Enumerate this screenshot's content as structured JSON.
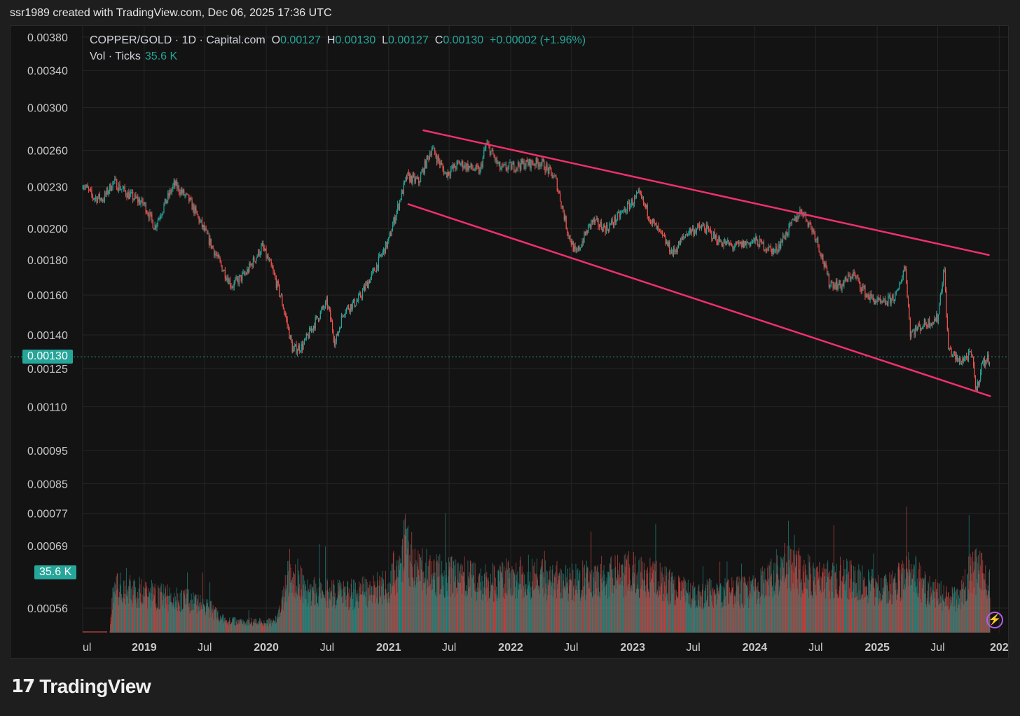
{
  "header": {
    "text": "ssr1989 created with TradingView.com, Dec 06, 2025 17:36 UTC"
  },
  "legend": {
    "symbol": "COPPER/GOLD · 1D · Capital.com",
    "o_label": "O",
    "o_value": "0.00127",
    "h_label": "H",
    "h_value": "0.00130",
    "l_label": "L",
    "l_value": "0.00127",
    "c_label": "C",
    "c_value": "0.00130",
    "change": "+0.00002 (+1.96%)",
    "volume_label": "Vol · Ticks",
    "volume_value": "35.6 K"
  },
  "price_tag": "0.00130",
  "volume_tag": "35.6 K",
  "footer": {
    "brand": "TradingView",
    "logo_icon": "tradingview-logo-icon"
  },
  "colors": {
    "up": "#26a69a",
    "down": "#ef5350",
    "trendline": "#f0306c",
    "background": "#131313",
    "grid": "#262626",
    "price_line": "#26a69a"
  },
  "chart_data": {
    "type": "candlestick",
    "title": "COPPER/GOLD · 1D · Capital.com",
    "y_scale": "log",
    "y_ticks": [
      "0.00380",
      "0.00340",
      "0.00300",
      "0.00260",
      "0.00230",
      "0.00200",
      "0.00180",
      "0.00160",
      "0.00140",
      "0.00125",
      "0.00110",
      "0.00095",
      "0.00085",
      "0.00077",
      "0.00069",
      "0.00056"
    ],
    "x_ticks": [
      "ul",
      "2019",
      "Jul",
      "2020",
      "Jul",
      "2021",
      "Jul",
      "2022",
      "Jul",
      "2023",
      "Jul",
      "2024",
      "Jul",
      "2025",
      "Jul",
      "202"
    ],
    "x_range": [
      "2018-07",
      "2025-12"
    ],
    "ylim": [
      0.0005,
      0.0039
    ],
    "last_price": 0.0013,
    "price_path": [
      [
        "2018-07-01",
        0.00233
      ],
      [
        "2018-08-01",
        0.00222
      ],
      [
        "2018-09-01",
        0.00221
      ],
      [
        "2018-10-01",
        0.00234
      ],
      [
        "2018-11-15",
        0.00224
      ],
      [
        "2019-01-01",
        0.00217
      ],
      [
        "2019-02-01",
        0.00201
      ],
      [
        "2019-04-01",
        0.00232
      ],
      [
        "2019-05-15",
        0.0022
      ],
      [
        "2019-07-01",
        0.00198
      ],
      [
        "2019-08-15",
        0.00178
      ],
      [
        "2019-09-20",
        0.00165
      ],
      [
        "2019-11-01",
        0.00172
      ],
      [
        "2019-12-20",
        0.00188
      ],
      [
        "2020-01-15",
        0.00176
      ],
      [
        "2020-02-15",
        0.00158
      ],
      [
        "2020-03-20",
        0.00133
      ],
      [
        "2020-04-20",
        0.00135
      ],
      [
        "2020-06-01",
        0.00148
      ],
      [
        "2020-07-01",
        0.00156
      ],
      [
        "2020-07-25",
        0.00136
      ],
      [
        "2020-08-20",
        0.00152
      ],
      [
        "2020-10-01",
        0.00157
      ],
      [
        "2020-11-15",
        0.00172
      ],
      [
        "2021-01-01",
        0.00192
      ],
      [
        "2021-02-01",
        0.00218
      ],
      [
        "2021-02-25",
        0.00238
      ],
      [
        "2021-04-01",
        0.00234
      ],
      [
        "2021-05-10",
        0.00262
      ],
      [
        "2021-06-20",
        0.0024
      ],
      [
        "2021-08-01",
        0.00249
      ],
      [
        "2021-10-01",
        0.00242
      ],
      [
        "2021-10-20",
        0.00266
      ],
      [
        "2021-12-01",
        0.00244
      ],
      [
        "2022-02-01",
        0.00248
      ],
      [
        "2022-04-01",
        0.0025
      ],
      [
        "2022-05-15",
        0.00236
      ],
      [
        "2022-06-20",
        0.00198
      ],
      [
        "2022-07-15",
        0.00183
      ],
      [
        "2022-09-01",
        0.00205
      ],
      [
        "2022-10-15",
        0.002
      ],
      [
        "2022-12-01",
        0.00211
      ],
      [
        "2023-01-20",
        0.00224
      ],
      [
        "2023-03-01",
        0.00204
      ],
      [
        "2023-05-01",
        0.00184
      ],
      [
        "2023-06-15",
        0.00198
      ],
      [
        "2023-08-01",
        0.00201
      ],
      [
        "2023-09-15",
        0.00192
      ],
      [
        "2023-11-01",
        0.00188
      ],
      [
        "2024-01-01",
        0.00192
      ],
      [
        "2024-03-01",
        0.00185
      ],
      [
        "2024-05-20",
        0.00213
      ],
      [
        "2024-07-01",
        0.00195
      ],
      [
        "2024-08-10",
        0.00167
      ],
      [
        "2024-09-15",
        0.00165
      ],
      [
        "2024-10-20",
        0.00172
      ],
      [
        "2024-12-01",
        0.0016
      ],
      [
        "2025-01-15",
        0.00155
      ],
      [
        "2025-03-01",
        0.0016
      ],
      [
        "2025-03-25",
        0.00177
      ],
      [
        "2025-04-10",
        0.00141
      ],
      [
        "2025-05-20",
        0.00145
      ],
      [
        "2025-07-01",
        0.00148
      ],
      [
        "2025-07-20",
        0.00176
      ],
      [
        "2025-08-01",
        0.00134
      ],
      [
        "2025-09-01",
        0.00128
      ],
      [
        "2025-10-10",
        0.00131
      ],
      [
        "2025-10-25",
        0.00116
      ],
      [
        "2025-11-10",
        0.00127
      ],
      [
        "2025-12-05",
        0.0013
      ]
    ],
    "trendlines": [
      {
        "name": "upper",
        "start": [
          "2021-04-15",
          0.00278
        ],
        "end": [
          "2025-12-01",
          0.00183
        ]
      },
      {
        "name": "lower",
        "start": [
          "2021-03-01",
          0.00217
        ],
        "end": [
          "2025-12-05",
          0.00114
        ]
      }
    ],
    "volume": {
      "label": "Vol · Ticks",
      "last": "35.6 K",
      "profile": [
        [
          "2018-07-01",
          0.0
        ],
        [
          "2018-09-20",
          0.0
        ],
        [
          "2018-10-01",
          0.3
        ],
        [
          "2019-01-01",
          0.27
        ],
        [
          "2019-07-01",
          0.19
        ],
        [
          "2019-09-01",
          0.08
        ],
        [
          "2020-02-01",
          0.07
        ],
        [
          "2020-03-15",
          0.44
        ],
        [
          "2020-05-01",
          0.28
        ],
        [
          "2020-09-01",
          0.25
        ],
        [
          "2021-01-01",
          0.32
        ],
        [
          "2021-02-20",
          0.58
        ],
        [
          "2021-04-01",
          0.42
        ],
        [
          "2021-10-01",
          0.34
        ],
        [
          "2022-03-01",
          0.38
        ],
        [
          "2022-07-01",
          0.34
        ],
        [
          "2022-10-01",
          0.38
        ],
        [
          "2023-01-01",
          0.4
        ],
        [
          "2023-03-01",
          0.36
        ],
        [
          "2023-07-01",
          0.26
        ],
        [
          "2024-01-01",
          0.28
        ],
        [
          "2024-04-01",
          0.46
        ],
        [
          "2024-07-01",
          0.36
        ],
        [
          "2024-10-01",
          0.38
        ],
        [
          "2025-02-01",
          0.28
        ],
        [
          "2025-04-10",
          0.42
        ],
        [
          "2025-06-01",
          0.28
        ],
        [
          "2025-09-01",
          0.22
        ],
        [
          "2025-10-15",
          0.44
        ],
        [
          "2025-12-05",
          0.34
        ]
      ]
    }
  }
}
